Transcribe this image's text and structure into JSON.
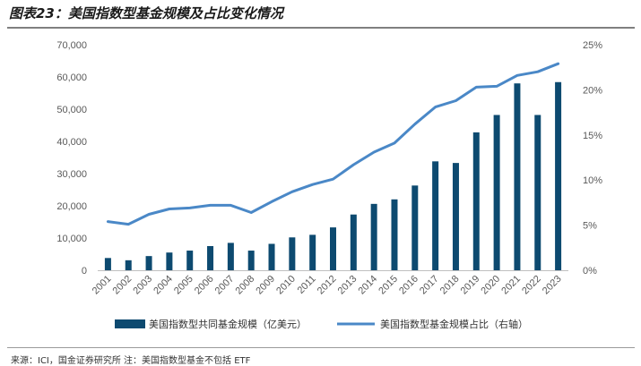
{
  "header": {
    "title": "图表23：美国指数型基金规模及占比变化情况"
  },
  "footer": {
    "source": "来源：ICI，国金证券研究所 注：美国指数型基金不包括 ETF"
  },
  "chart_data": {
    "type": "bar",
    "categories": [
      "2001",
      "2002",
      "2003",
      "2004",
      "2005",
      "2006",
      "2007",
      "2008",
      "2009",
      "2010",
      "2011",
      "2012",
      "2013",
      "2014",
      "2015",
      "2016",
      "2017",
      "2018",
      "2019",
      "2020",
      "2021",
      "2022",
      "2023"
    ],
    "series": [
      {
        "name": "美国指数型共同基金规模（亿美元）",
        "type": "bar",
        "axis": "left",
        "color": "#0d4a70",
        "values": [
          3800,
          3100,
          4400,
          5500,
          6100,
          7500,
          8500,
          6100,
          8200,
          10200,
          11000,
          13300,
          17300,
          20600,
          22000,
          26300,
          33800,
          33300,
          42800,
          48200,
          58000,
          48200,
          58400
        ]
      },
      {
        "name": "美国指数型基金规模占比（右轴）",
        "type": "line",
        "axis": "right",
        "color": "#4a88c7",
        "values": [
          5.4,
          5.1,
          6.2,
          6.8,
          6.9,
          7.2,
          7.2,
          6.4,
          7.6,
          8.7,
          9.5,
          10.1,
          11.7,
          13.1,
          14.1,
          16.2,
          18.1,
          18.8,
          20.3,
          20.4,
          21.6,
          22.0,
          22.9
        ]
      }
    ],
    "y_left": {
      "min": 0,
      "max": 70000,
      "step": 10000,
      "tick_labels": [
        "0",
        "10,000",
        "20,000",
        "30,000",
        "40,000",
        "50,000",
        "60,000",
        "70,000"
      ]
    },
    "y_right": {
      "min": 0,
      "max": 25,
      "step": 5,
      "tick_labels": [
        "0%",
        "5%",
        "10%",
        "15%",
        "20%",
        "25%"
      ]
    },
    "grid": false,
    "legend_position": "bottom"
  }
}
